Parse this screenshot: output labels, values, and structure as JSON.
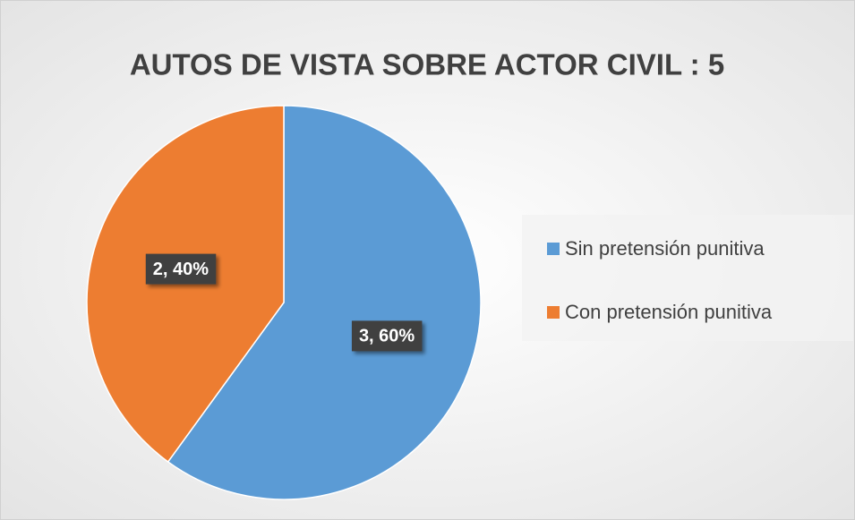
{
  "chart_data": {
    "type": "pie",
    "title": "AUTOS DE VISTA SOBRE ACTOR CIVIL : 5",
    "categories": [
      "Sin pretensión punitiva",
      "Con pretensión punitiva"
    ],
    "values": [
      3,
      2
    ],
    "value_labels": [
      "3, 60%",
      "2, 40%"
    ],
    "colors": [
      "#5b9bd5",
      "#ed7d31"
    ],
    "legend": "right"
  }
}
